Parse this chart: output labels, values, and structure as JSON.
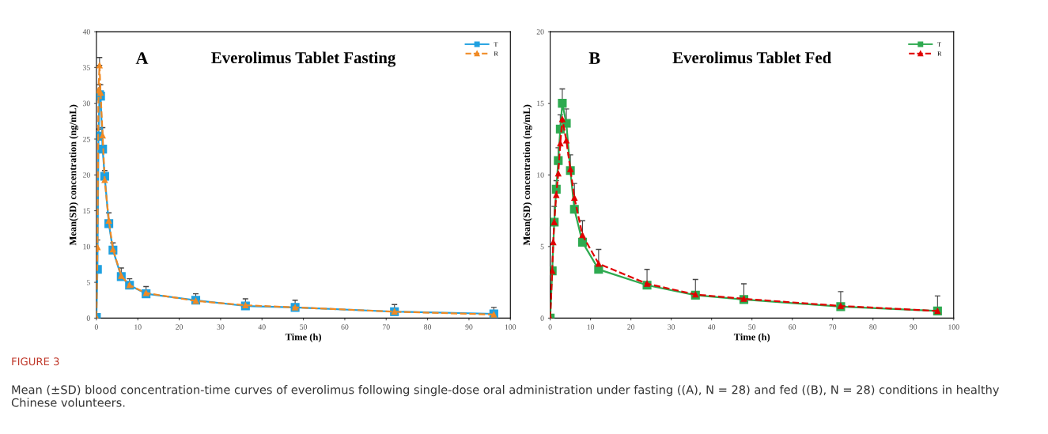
{
  "chart_data": [
    {
      "type": "line",
      "title": "Everolimus Tablet Fasting",
      "xlabel": "Time (h)",
      "ylabel": "Mean(SD) concentration (ng/mL)",
      "annotations": [
        "A",
        "FIGURE 3",
        "Mean (±SD) blood concentration-time curves of everolimus following single-dose oral administration under fasting ((A), N = 28) and fed ((B), N = 28) conditions in healthy Chinese volunteers."
      ],
      "xlim": [
        0,
        100
      ],
      "xticks": [
        0,
        10,
        20,
        30,
        40,
        50,
        60,
        70,
        80,
        90,
        100
      ],
      "ylim": [
        0,
        40
      ],
      "yticks": [
        0,
        5,
        10,
        15,
        20,
        25,
        30,
        35,
        40
      ],
      "grid": false,
      "legend": "top right",
      "series": [
        {
          "name": "T",
          "color": "#1ea0e0",
          "marker": "square",
          "line_style": "solid",
          "x": [
            0,
            0.25,
            0.5,
            0.75,
            1,
            1.5,
            2,
            3,
            4,
            6,
            8,
            12,
            24,
            36,
            48,
            72,
            96
          ],
          "values": [
            0.1,
            6.8,
            25.4,
            31.2,
            31.0,
            23.6,
            19.8,
            13.2,
            9.5,
            5.8,
            4.6,
            3.4,
            2.5,
            1.7,
            1.5,
            0.9,
            0.6
          ],
          "errors": [
            null,
            [
              6.8,
              10.9
            ],
            [
              25.4,
              26.4
            ],
            [
              31.2,
              32.6
            ],
            [
              31.0,
              32.6
            ],
            [
              23.6,
              26.6
            ],
            [
              19.8,
              20.6
            ],
            [
              13.2,
              14.7
            ],
            [
              9.5,
              10.5
            ],
            [
              5.8,
              7.0
            ],
            [
              4.6,
              5.5
            ],
            [
              3.4,
              4.4
            ],
            [
              2.5,
              3.4
            ],
            [
              1.7,
              2.7
            ],
            [
              1.5,
              2.5
            ],
            [
              0.9,
              1.9
            ],
            [
              0.6,
              1.5
            ]
          ]
        },
        {
          "name": "R",
          "color": "#f08a24",
          "marker": "triangle",
          "line_style": "dashed",
          "x": [
            0,
            0.25,
            0.5,
            0.75,
            1,
            1.5,
            2,
            3,
            4,
            6,
            8,
            12,
            24,
            36,
            48,
            72,
            96
          ],
          "values": [
            0.1,
            9.9,
            31.8,
            35.3,
            31.5,
            25.5,
            19.3,
            13.6,
            9.6,
            5.9,
            4.6,
            3.5,
            2.4,
            1.8,
            1.5,
            0.9,
            0.5
          ],
          "errors": [
            null,
            null,
            null,
            [
              35.3,
              36.4
            ],
            null,
            null,
            null,
            null,
            null,
            null,
            null,
            null,
            null,
            null,
            null,
            null,
            null
          ]
        }
      ]
    },
    {
      "type": "line",
      "title": "Everolimus Tablet Fed",
      "xlabel": "Time (h)",
      "ylabel": "Mean(SD) concentration (ng/mL)",
      "annotations": [
        "B"
      ],
      "xlim": [
        0,
        100
      ],
      "xticks": [
        0,
        10,
        20,
        30,
        40,
        50,
        60,
        70,
        80,
        90,
        100
      ],
      "ylim": [
        0,
        20
      ],
      "yticks": [
        0,
        5,
        10,
        15,
        20
      ],
      "grid": false,
      "legend": "top right",
      "series": [
        {
          "name": "T",
          "color": "#2eaa50",
          "marker": "square",
          "line_style": "solid",
          "x": [
            0,
            0.5,
            1,
            1.5,
            2,
            2.5,
            3,
            4,
            5,
            6,
            8,
            12,
            24,
            36,
            48,
            72,
            96
          ],
          "values": [
            0,
            3.3,
            6.7,
            9.0,
            11.0,
            13.2,
            15.0,
            13.6,
            10.3,
            7.6,
            5.3,
            3.4,
            2.3,
            1.6,
            1.3,
            0.8,
            0.5
          ],
          "errors": [
            null,
            null,
            [
              6.7,
              7.8
            ],
            [
              9.0,
              9.6
            ],
            [
              11.0,
              11.9
            ],
            [
              13.2,
              14.2
            ],
            [
              15.0,
              16.0
            ],
            [
              13.6,
              14.6
            ],
            [
              10.3,
              11.4
            ],
            [
              7.6,
              9.4
            ],
            [
              5.3,
              6.8
            ],
            [
              3.4,
              4.8
            ],
            [
              2.3,
              3.4
            ],
            [
              1.6,
              2.7
            ],
            [
              1.3,
              2.4
            ],
            [
              0.8,
              1.85
            ],
            [
              0.5,
              1.55
            ]
          ]
        },
        {
          "name": "R",
          "color": "#e00000",
          "marker": "triangle",
          "line_style": "dashed",
          "x": [
            0,
            0.5,
            0.75,
            1,
            1.5,
            2,
            2.5,
            3,
            4,
            5,
            6,
            8,
            12,
            24,
            36,
            48,
            72,
            96
          ],
          "values": [
            0,
            3.3,
            5.3,
            6.7,
            8.6,
            10.1,
            12.2,
            13.9,
            12.4,
            10.4,
            8.4,
            5.8,
            3.8,
            2.4,
            1.65,
            1.35,
            0.85,
            0.5
          ]
        }
      ]
    }
  ]
}
